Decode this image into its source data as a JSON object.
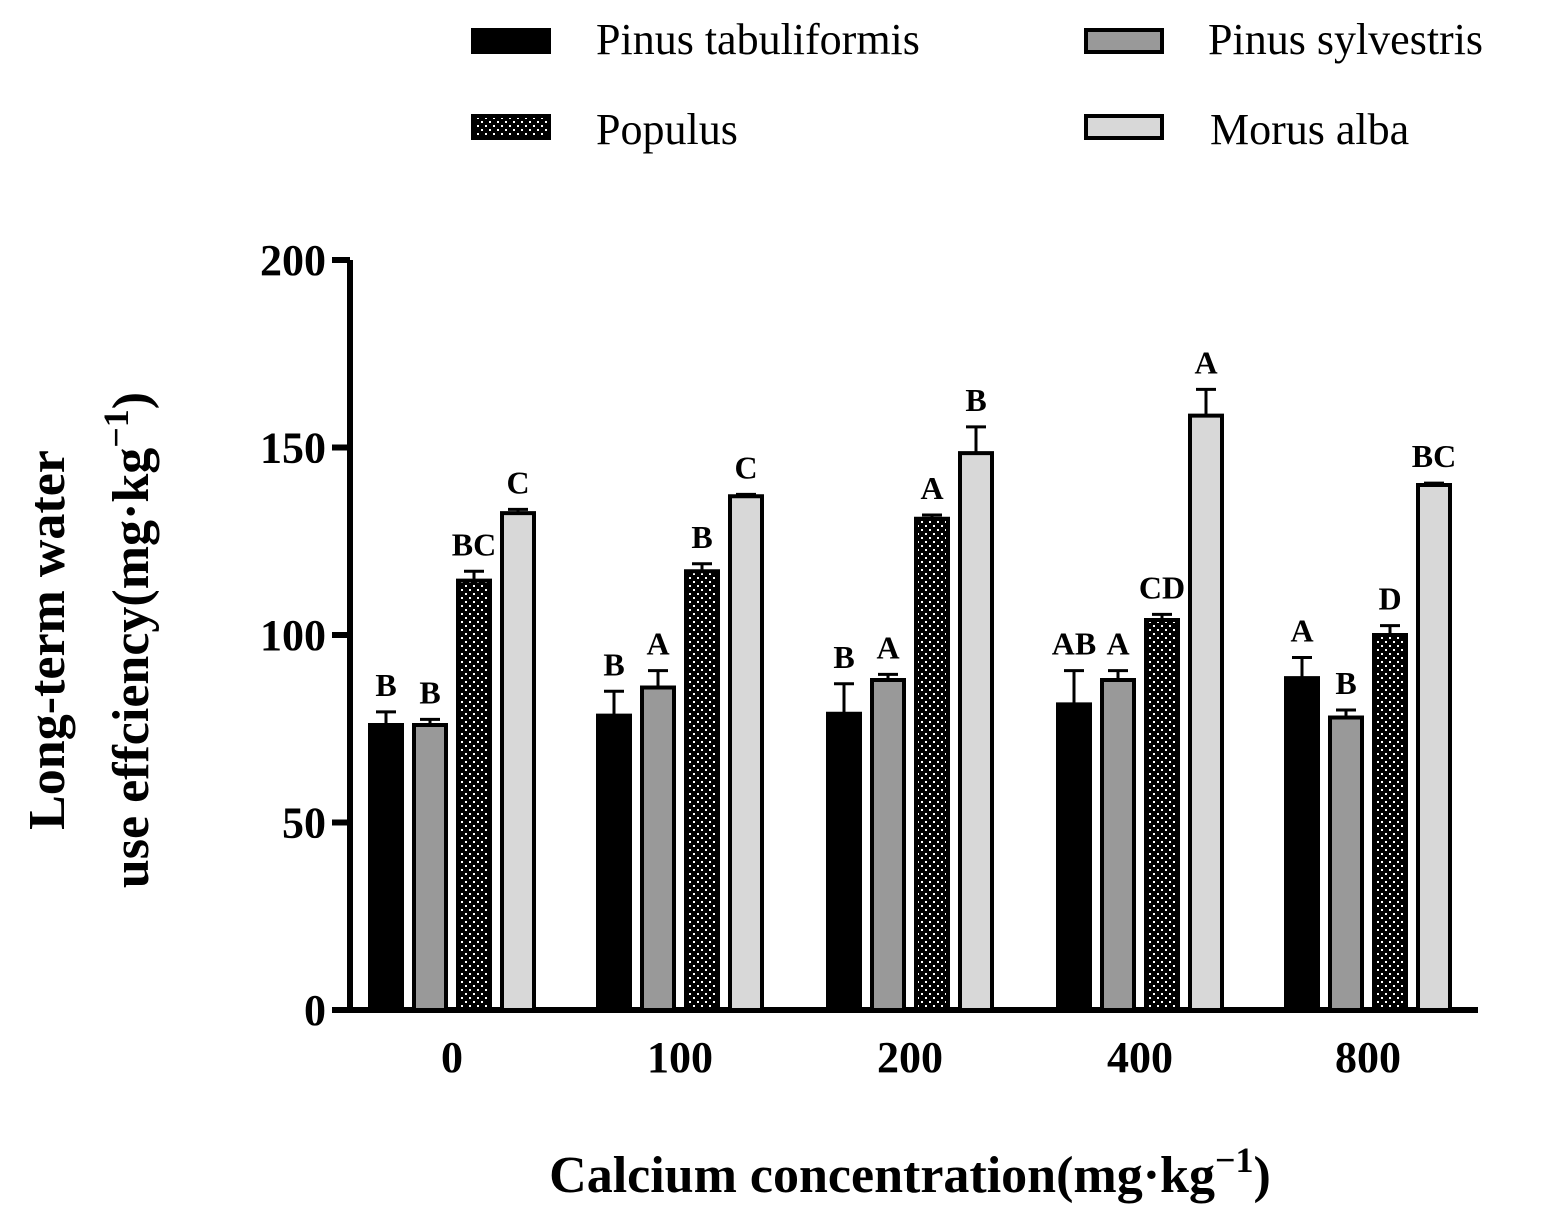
{
  "chart_data": {
    "type": "bar",
    "title": "",
    "xlabel": "Calcium concentration(mg·kg",
    "xlabel_sup": "−1",
    "xlabel_close": ")",
    "ylabel_line1": "Long-term water",
    "ylabel_line2": "use effciency(mg·kg",
    "ylabel_sup": "−1",
    "ylabel_close": ")",
    "ylim": [
      0,
      200
    ],
    "yticks": [
      0,
      50,
      100,
      150,
      200
    ],
    "categories": [
      "0",
      "100",
      "200",
      "400",
      "800"
    ],
    "legend_position": "top",
    "series": [
      {
        "name": "Pinus tabuliformis",
        "color": "#000000",
        "pattern": "solid-black",
        "values": [
          76,
          78.5,
          79,
          81.5,
          88.5
        ],
        "errors": [
          3.5,
          6.5,
          8,
          9,
          5.5
        ],
        "letters": [
          "B",
          "B",
          "B",
          "AB",
          "A"
        ]
      },
      {
        "name": "Pinus sylvestris",
        "color": "#999999",
        "pattern": "gray",
        "values": [
          76,
          86,
          88,
          88,
          78
        ],
        "errors": [
          1.5,
          4.5,
          1.5,
          2.5,
          2
        ],
        "letters": [
          "B",
          "A",
          "A",
          "A",
          "B"
        ]
      },
      {
        "name": "Populus",
        "color": "#000000",
        "pattern": "dotted",
        "values": [
          114.5,
          117,
          131,
          104,
          100
        ],
        "errors": [
          2.5,
          2,
          1,
          1.5,
          2.5
        ],
        "letters": [
          "BC",
          "B",
          "A",
          "CD",
          "D"
        ]
      },
      {
        "name": "Morus alba",
        "color": "#d8d8d8",
        "pattern": "light-gray",
        "values": [
          132.5,
          137,
          148.5,
          158.5,
          140
        ],
        "errors": [
          1,
          0.5,
          7,
          7,
          0.5
        ],
        "letters": [
          "C",
          "C",
          "B",
          "A",
          "BC"
        ]
      }
    ]
  }
}
